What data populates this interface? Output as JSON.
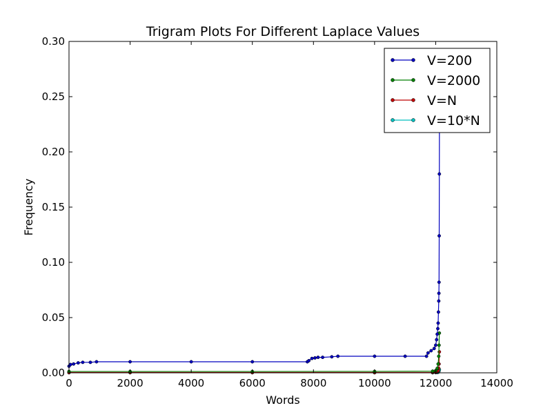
{
  "chart_data": {
    "type": "line",
    "title": "Trigram Plots For Different Laplace Values",
    "xlabel": "Words",
    "ylabel": "Frequency",
    "xlim": [
      0,
      14000
    ],
    "ylim": [
      0,
      0.3
    ],
    "x_ticks": [
      0,
      2000,
      4000,
      6000,
      8000,
      10000,
      12000,
      14000
    ],
    "x_tick_labels": [
      "0",
      "2000",
      "4000",
      "6000",
      "8000",
      "10000",
      "12000",
      "14000"
    ],
    "y_ticks": [
      0,
      0.05,
      0.1,
      0.15,
      0.2,
      0.25,
      0.3
    ],
    "y_tick_labels": [
      "0.00",
      "0.05",
      "0.10",
      "0.15",
      "0.20",
      "0.25",
      "0.30"
    ],
    "grid": false,
    "legend_position": "top-right",
    "series": [
      {
        "name": "V=200",
        "color": "#0000bf",
        "x": [
          0,
          50,
          150,
          300,
          450,
          700,
          900,
          2000,
          4000,
          6000,
          7800,
          7850,
          7950,
          8050,
          8150,
          8300,
          8600,
          8800,
          10000,
          11000,
          11700,
          11750,
          11850,
          11950,
          12000,
          12030,
          12050,
          12070,
          12080,
          12090,
          12100,
          12105,
          12110,
          12115,
          12120,
          12125
        ],
        "y": [
          0.006,
          0.0075,
          0.008,
          0.009,
          0.0095,
          0.0095,
          0.01,
          0.01,
          0.01,
          0.01,
          0.01,
          0.011,
          0.013,
          0.0135,
          0.014,
          0.014,
          0.0145,
          0.015,
          0.015,
          0.015,
          0.015,
          0.018,
          0.02,
          0.022,
          0.025,
          0.03,
          0.035,
          0.04,
          0.045,
          0.055,
          0.065,
          0.072,
          0.082,
          0.124,
          0.18,
          0.26
        ]
      },
      {
        "name": "V=2000",
        "color": "#007f00",
        "x": [
          0,
          2000,
          6000,
          10000,
          11900,
          12000,
          12050,
          12080,
          12100,
          12110,
          12120
        ],
        "y": [
          0.0012,
          0.0012,
          0.0012,
          0.0013,
          0.0015,
          0.002,
          0.004,
          0.008,
          0.015,
          0.025,
          0.036
        ]
      },
      {
        "name": "V=N",
        "color": "#bf0000",
        "x": [
          0,
          2000,
          6000,
          10000,
          11900,
          12000,
          12050,
          12080,
          12100,
          12110,
          12120
        ],
        "y": [
          0.0003,
          0.0003,
          0.0003,
          0.0003,
          0.0004,
          0.0006,
          0.001,
          0.002,
          0.004,
          0.008,
          0.019
        ]
      },
      {
        "name": "V=10*N",
        "color": "#00bfbf",
        "x": [
          0,
          2000,
          6000,
          10000,
          11900,
          12000,
          12050,
          12080,
          12100,
          12110,
          12120
        ],
        "y": [
          0.0001,
          0.0001,
          0.0001,
          0.0001,
          0.0001,
          0.0002,
          0.0003,
          0.0005,
          0.001,
          0.002,
          0.003
        ]
      }
    ]
  }
}
